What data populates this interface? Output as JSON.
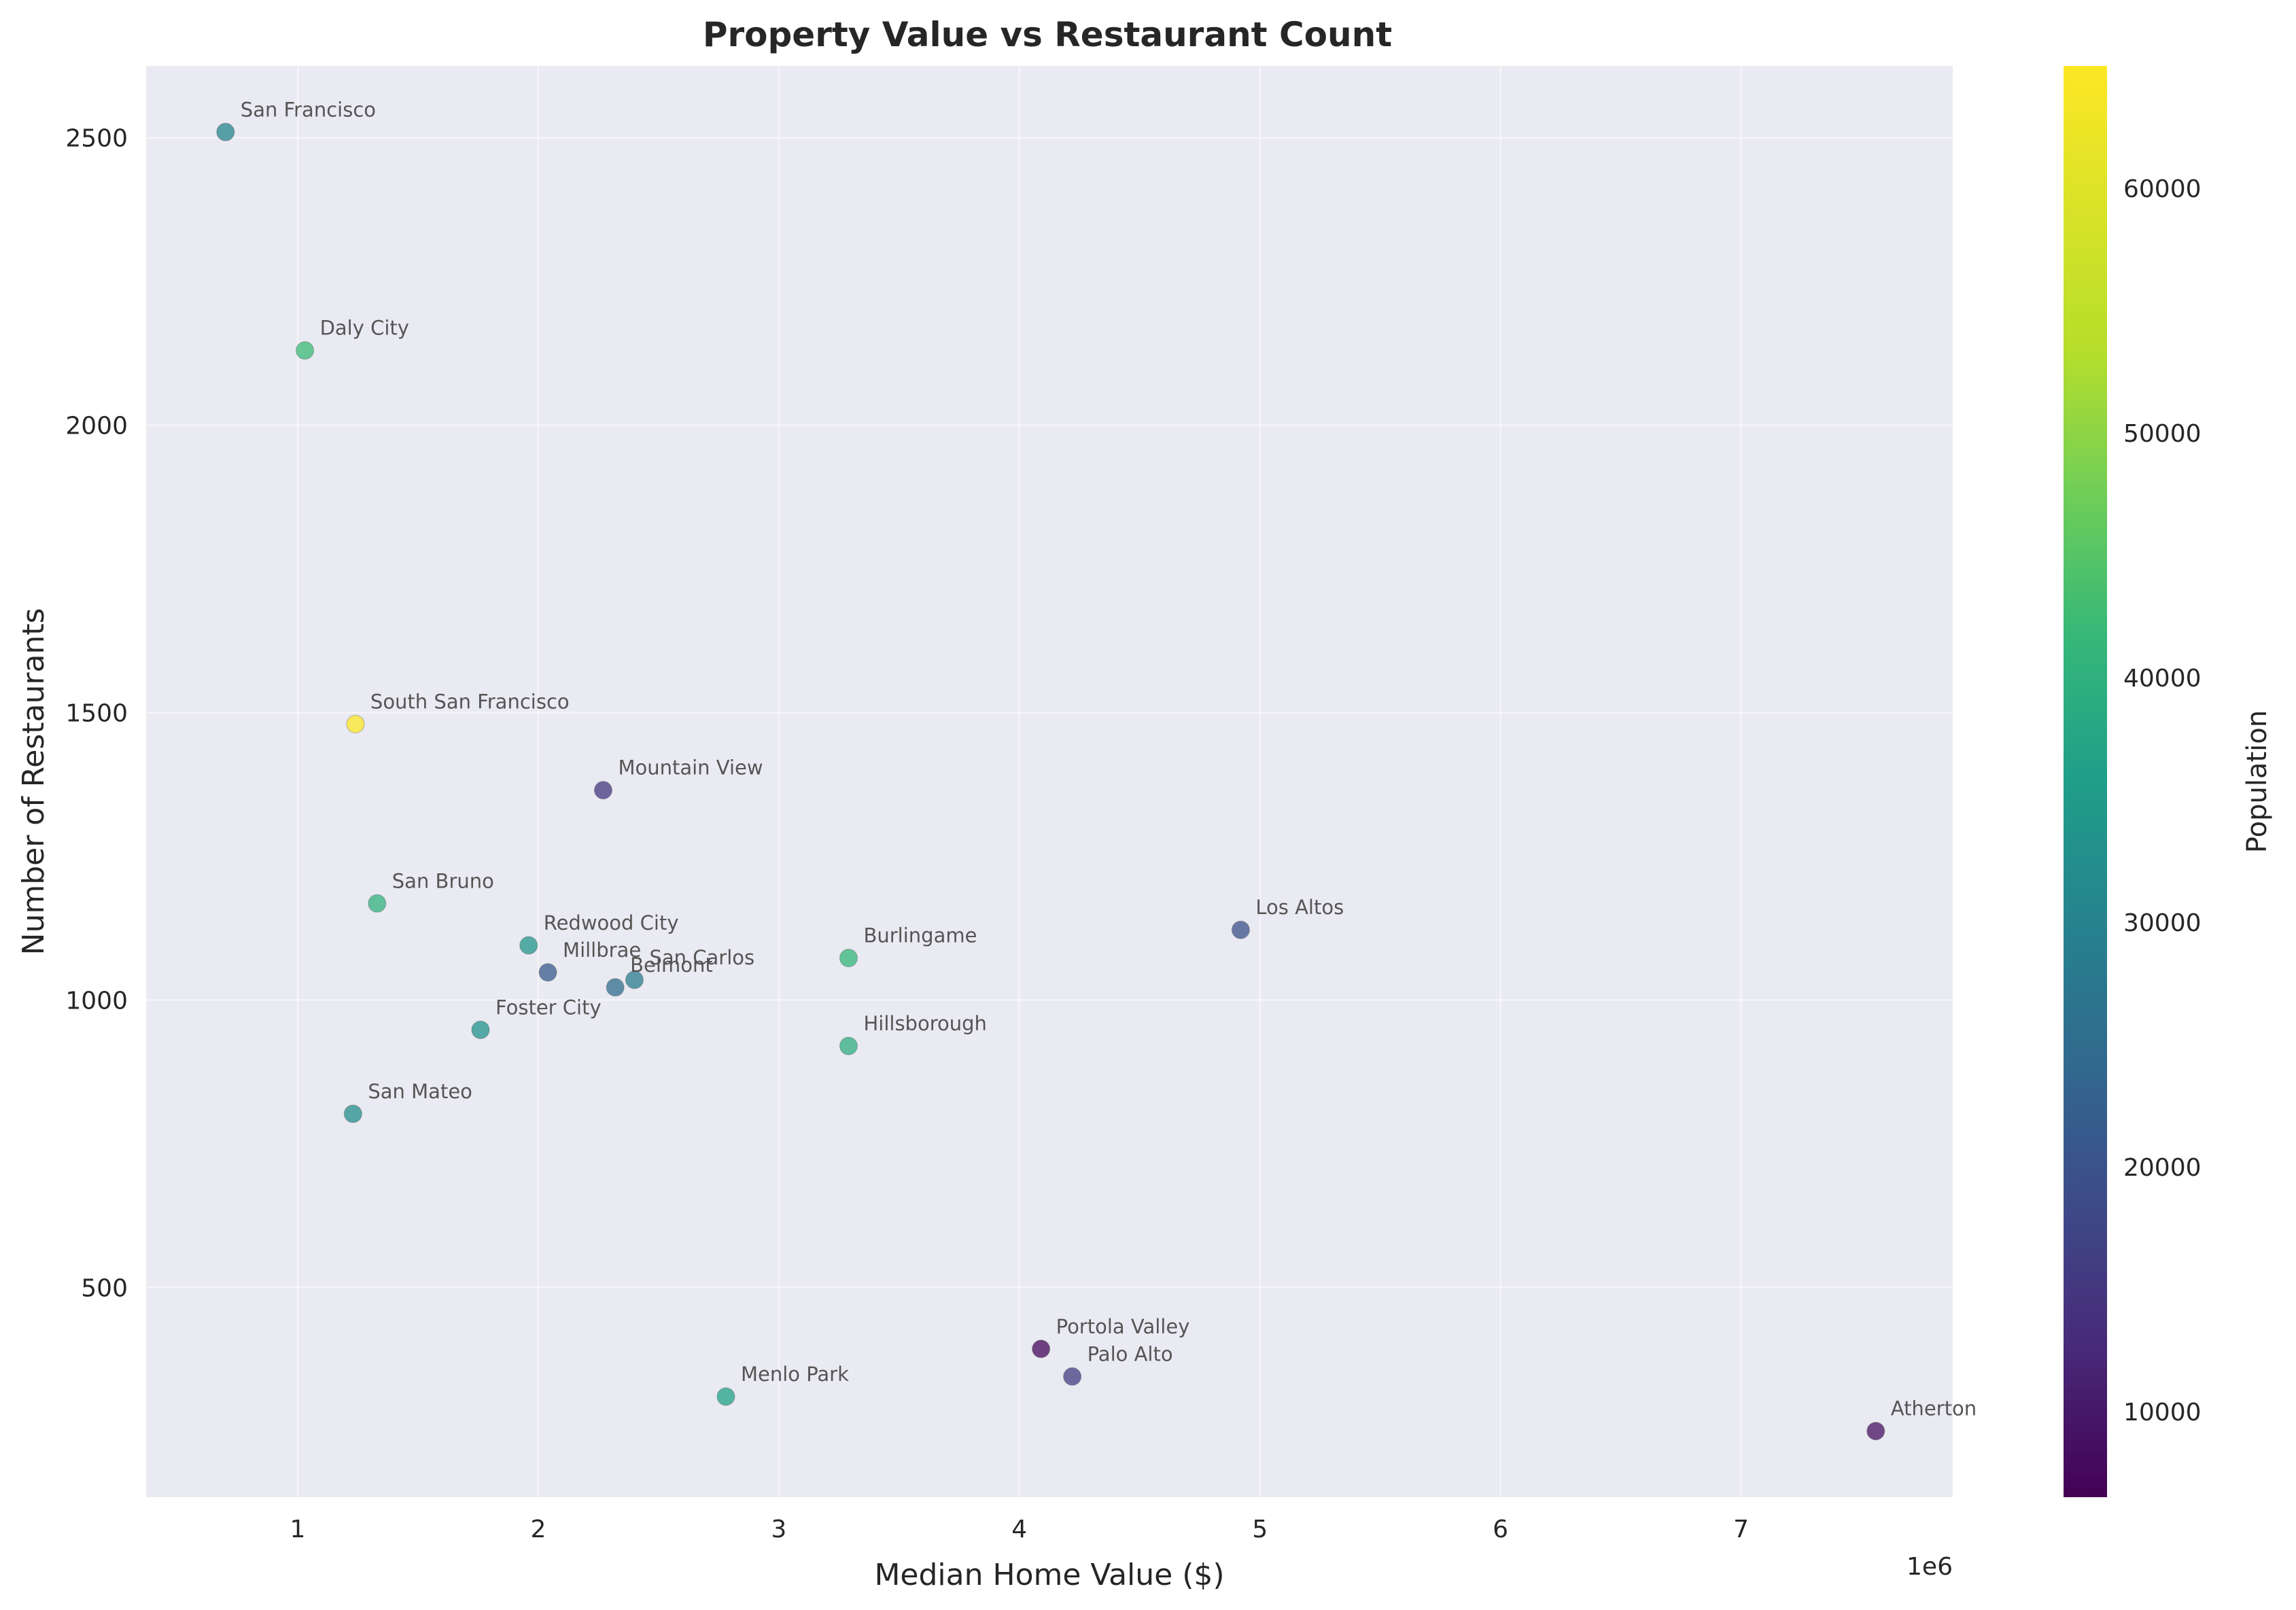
{
  "chart_data": {
    "type": "scatter",
    "title": "Property Value vs Restaurant Count",
    "xlabel": "Median Home Value ($)",
    "ylabel": "Number of Restaurants",
    "x_offset_label": "1e6",
    "xlim": [
      370000,
      7880000
    ],
    "ylim": [
      135,
      2625
    ],
    "x_ticks": [
      1000000,
      2000000,
      3000000,
      4000000,
      5000000,
      6000000,
      7000000
    ],
    "x_tick_labels": [
      "1",
      "2",
      "3",
      "4",
      "5",
      "6",
      "7"
    ],
    "y_ticks": [
      500,
      1000,
      1500,
      2000,
      2500
    ],
    "y_tick_labels": [
      "500",
      "1000",
      "1500",
      "2000",
      "2500"
    ],
    "grid": true,
    "colorbar": {
      "label": "Population",
      "colormap": "viridis",
      "range": [
        6500,
        65000
      ],
      "ticks": [
        10000,
        20000,
        30000,
        40000,
        50000,
        60000
      ],
      "tick_labels": [
        "10000",
        "20000",
        "30000",
        "40000",
        "50000",
        "60000"
      ]
    },
    "points": [
      {
        "label": "San Francisco",
        "x": 700000,
        "y": 2510,
        "population": 33000
      },
      {
        "label": "Daly City",
        "x": 1030000,
        "y": 2130,
        "population": 46000
      },
      {
        "label": "South San Francisco",
        "x": 1240000,
        "y": 1480,
        "population": 65000
      },
      {
        "label": "Mountain View",
        "x": 2270000,
        "y": 1365,
        "population": 16000
      },
      {
        "label": "San Bruno",
        "x": 1330000,
        "y": 1168,
        "population": 44000
      },
      {
        "label": "Redwood City",
        "x": 1960000,
        "y": 1095,
        "population": 37000
      },
      {
        "label": "Millbrae",
        "x": 2040000,
        "y": 1048,
        "population": 23000
      },
      {
        "label": "San Carlos",
        "x": 2400000,
        "y": 1035,
        "population": 31000
      },
      {
        "label": "Belmont",
        "x": 2320000,
        "y": 1022,
        "population": 27000
      },
      {
        "label": "Burlingame",
        "x": 3290000,
        "y": 1073,
        "population": 45000
      },
      {
        "label": "Los Altos",
        "x": 4920000,
        "y": 1122,
        "population": 21000
      },
      {
        "label": "Foster City",
        "x": 1760000,
        "y": 948,
        "population": 36000
      },
      {
        "label": "Hillsborough",
        "x": 3290000,
        "y": 920,
        "population": 43000
      },
      {
        "label": "San Mateo",
        "x": 1230000,
        "y": 802,
        "population": 35000
      },
      {
        "label": "Portola Valley",
        "x": 4090000,
        "y": 393,
        "population": 7500
      },
      {
        "label": "Palo Alto",
        "x": 4220000,
        "y": 345,
        "population": 17000
      },
      {
        "label": "Menlo Park",
        "x": 2780000,
        "y": 310,
        "population": 40000
      },
      {
        "label": "Atherton",
        "x": 7560000,
        "y": 250,
        "population": 9000
      }
    ]
  }
}
